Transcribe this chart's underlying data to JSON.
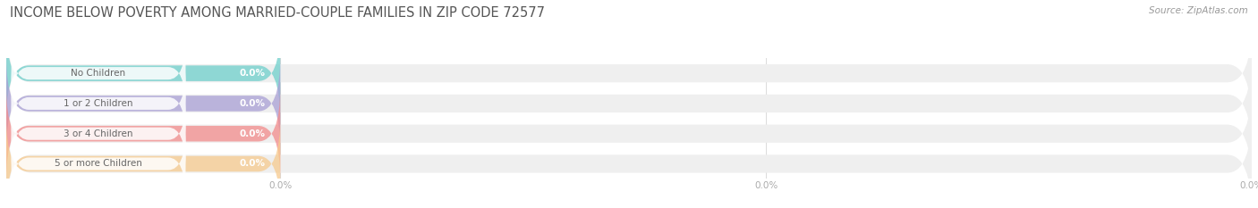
{
  "title": "INCOME BELOW POVERTY AMONG MARRIED-COUPLE FAMILIES IN ZIP CODE 72577",
  "source": "Source: ZipAtlas.com",
  "categories": [
    "No Children",
    "1 or 2 Children",
    "3 or 4 Children",
    "5 or more Children"
  ],
  "values": [
    0.0,
    0.0,
    0.0,
    0.0
  ],
  "bar_colors": [
    "#6ECFCB",
    "#A99FD5",
    "#F28B8B",
    "#F7CA8E"
  ],
  "track_color": "#EFEFEF",
  "title_fontsize": 10.5,
  "label_fontsize": 7.5,
  "value_fontsize": 7.5,
  "background_color": "#FFFFFF",
  "source_fontsize": 7.5,
  "tick_label_color": "#AAAAAA",
  "label_text_color": "#666666",
  "grid_color": "#DDDDDD"
}
